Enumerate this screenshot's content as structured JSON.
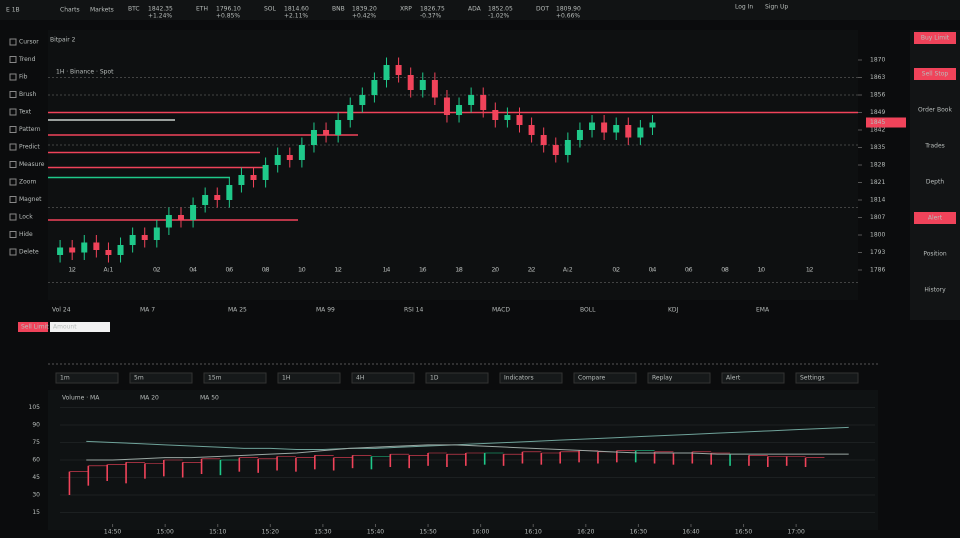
{
  "topbar": {
    "brand": "E 1B",
    "menu": [
      "Charts",
      "Markets"
    ],
    "tickers": [
      {
        "name": "BTC",
        "price": "1842.35",
        "change": "+1.24%",
        "up": false
      },
      {
        "name": "ETH",
        "price": "1796.10",
        "change": "+0.85%",
        "up": false
      },
      {
        "name": "SOL",
        "price": "1814.60",
        "change": "+2.11%",
        "up": false
      },
      {
        "name": "BNB",
        "price": "1839.20",
        "change": "+0.42%",
        "up": true
      },
      {
        "name": "XRP",
        "price": "1826.75",
        "change": "-0.37%",
        "up": false
      },
      {
        "name": "ADA",
        "price": "1852.05",
        "change": "-1.02%",
        "up": false
      },
      {
        "name": "DOT",
        "price": "1809.90",
        "change": "+0.66%",
        "up": true
      }
    ],
    "right": [
      "Log In",
      "Sign Up"
    ]
  },
  "left_labels": [
    "Cursor",
    "Trend",
    "Fib",
    "Brush",
    "Text",
    "Pattern",
    "Predict",
    "Measure",
    "Zoom",
    "Magnet",
    "Lock",
    "Hide",
    "Delete"
  ],
  "right_panel": {
    "buttons": [
      {
        "label": "Buy Limit",
        "red": true
      },
      {
        "label": "Sell Stop",
        "red": true
      },
      {
        "label": "Order Book",
        "red": false
      },
      {
        "label": "Trades",
        "red": false
      },
      {
        "label": "Depth",
        "red": false
      },
      {
        "label": "Alert",
        "red": true
      },
      {
        "label": "Position",
        "red": false
      },
      {
        "label": "History",
        "red": false
      }
    ]
  },
  "order_bar": {
    "button": "Sell Limit",
    "input": "Amount"
  },
  "indicators": [
    "Vol 24",
    "MA 7",
    "MA 25",
    "MA 99",
    "RSI 14",
    "MACD",
    "BOLL",
    "KDJ",
    "EMA"
  ],
  "lower_toolbar": [
    "1m",
    "5m",
    "15m",
    "1H",
    "4H",
    "1D",
    "Indicators",
    "Compare",
    "Replay",
    "Alert",
    "Settings"
  ],
  "chart_data": [
    {
      "type": "candlestick",
      "title": "Bitpair 2",
      "subtitle": "1H · Binance · Spot",
      "up_color": "#1fc98a",
      "down_color": "#f0435a",
      "open": [
        1792,
        1795,
        1793,
        1797,
        1794,
        1792,
        1796,
        1800,
        1798,
        1803,
        1808,
        1806,
        1812,
        1816,
        1814,
        1820,
        1824,
        1822,
        1828,
        1832,
        1830,
        1836,
        1842,
        1840,
        1846,
        1852,
        1856,
        1862,
        1868,
        1864,
        1858,
        1862,
        1855,
        1848,
        1852,
        1856,
        1850,
        1846,
        1848,
        1844,
        1840,
        1836,
        1832,
        1838,
        1842,
        1845,
        1841,
        1844,
        1839,
        1843
      ],
      "high": [
        1798,
        1798,
        1800,
        1800,
        1797,
        1799,
        1803,
        1803,
        1806,
        1811,
        1811,
        1815,
        1819,
        1819,
        1823,
        1827,
        1827,
        1831,
        1835,
        1835,
        1839,
        1845,
        1845,
        1849,
        1855,
        1859,
        1865,
        1871,
        1871,
        1867,
        1865,
        1865,
        1858,
        1855,
        1859,
        1859,
        1853,
        1851,
        1851,
        1847,
        1843,
        1839,
        1841,
        1845,
        1848,
        1848,
        1847,
        1847,
        1846,
        1848
      ],
      "low": [
        1789,
        1790,
        1790,
        1791,
        1789,
        1789,
        1793,
        1795,
        1795,
        1800,
        1803,
        1803,
        1809,
        1811,
        1811,
        1817,
        1819,
        1819,
        1825,
        1827,
        1827,
        1833,
        1837,
        1837,
        1843,
        1849,
        1853,
        1859,
        1861,
        1855,
        1855,
        1852,
        1845,
        1845,
        1849,
        1847,
        1843,
        1843,
        1841,
        1837,
        1833,
        1829,
        1829,
        1835,
        1839,
        1838,
        1838,
        1836,
        1836,
        1840
      ],
      "close": [
        1795,
        1793,
        1797,
        1794,
        1792,
        1796,
        1800,
        1798,
        1803,
        1808,
        1806,
        1812,
        1816,
        1814,
        1820,
        1824,
        1822,
        1828,
        1832,
        1830,
        1836,
        1842,
        1840,
        1846,
        1852,
        1856,
        1862,
        1868,
        1864,
        1858,
        1862,
        1855,
        1848,
        1852,
        1856,
        1850,
        1846,
        1848,
        1844,
        1840,
        1836,
        1832,
        1838,
        1842,
        1845,
        1841,
        1844,
        1839,
        1843,
        1845
      ],
      "levels": [
        {
          "value": 1849,
          "color": "#f0435a",
          "dashed": false
        },
        {
          "value": 1846,
          "color": "#c8d0cc",
          "dashed": false
        },
        {
          "value": 1840,
          "color": "#f0435a",
          "dashed": false
        },
        {
          "value": 1833,
          "color": "#f0435a",
          "dashed": false
        },
        {
          "value": 1827,
          "color": "#f0435a",
          "dashed": false
        },
        {
          "value": 1823,
          "color": "#1fc98a",
          "dashed": false
        },
        {
          "value": 1806,
          "color": "#f0435a",
          "dashed": false
        },
        {
          "value": 1863,
          "color": "#777",
          "dashed": true
        },
        {
          "value": 1856,
          "color": "#777",
          "dashed": true
        },
        {
          "value": 1836,
          "color": "#777",
          "dashed": true
        },
        {
          "value": 1811,
          "color": "#777",
          "dashed": true
        },
        {
          "value": 1781,
          "color": "#777",
          "dashed": true
        }
      ],
      "last_price": 1845,
      "ylim": [
        1778,
        1878
      ],
      "yticks": [
        1870,
        1863,
        1856,
        1849,
        1842,
        1835,
        1828,
        1821,
        1814,
        1807,
        1800,
        1793,
        1786
      ],
      "xlim": [
        -1,
        66
      ],
      "xticks": [
        {
          "value": 1,
          "label": "12"
        },
        {
          "value": 4,
          "label": "A 1"
        },
        {
          "value": 8,
          "label": "02"
        },
        {
          "value": 11,
          "label": "04"
        },
        {
          "value": 14,
          "label": "06"
        },
        {
          "value": 17,
          "label": "08"
        },
        {
          "value": 20,
          "label": "10"
        },
        {
          "value": 23,
          "label": "12"
        },
        {
          "value": 27,
          "label": "14"
        },
        {
          "value": 30,
          "label": "16"
        },
        {
          "value": 33,
          "label": "18"
        },
        {
          "value": 36,
          "label": "20"
        },
        {
          "value": 39,
          "label": "22"
        },
        {
          "value": 42,
          "label": "A 2"
        },
        {
          "value": 46,
          "label": "02"
        },
        {
          "value": 49,
          "label": "04"
        },
        {
          "value": 52,
          "label": "06"
        },
        {
          "value": 55,
          "label": "08"
        },
        {
          "value": 58,
          "label": "10"
        },
        {
          "value": 62,
          "label": "12"
        }
      ]
    },
    {
      "type": "combo",
      "title": "Volume · MA",
      "ylim": [
        0,
        120
      ],
      "yticks": [
        105,
        90,
        75,
        60,
        45,
        30,
        15
      ],
      "xlim": [
        -1,
        30
      ],
      "series": [
        {
          "name": "MA 20",
          "color": "#6fa39a",
          "values": [
            76,
            75,
            74,
            73,
            72,
            71,
            70,
            70,
            69,
            69,
            70,
            70,
            71,
            72,
            73,
            74,
            75,
            76,
            77,
            78,
            79,
            80,
            81,
            82,
            83,
            84,
            85,
            86,
            87,
            88
          ]
        },
        {
          "name": "MA 50",
          "color": "#9aa7a3",
          "values": [
            60,
            60,
            61,
            62,
            62,
            63,
            64,
            65,
            66,
            68,
            70,
            71,
            72,
            73,
            73,
            72,
            71,
            70,
            69,
            68,
            67,
            66,
            66,
            66,
            65,
            65,
            65,
            65,
            65,
            65
          ]
        }
      ],
      "bars": {
        "up_color": "#1fc98a",
        "down_color": "#f0435a",
        "low": [
          30,
          38,
          42,
          40,
          44,
          46,
          45,
          48,
          47,
          50,
          49,
          51,
          50,
          52,
          51,
          53,
          52,
          54,
          53,
          55,
          54,
          55,
          56,
          55,
          57,
          56,
          57,
          58,
          57,
          58,
          58,
          57,
          56,
          57,
          56,
          55,
          55,
          54,
          55,
          54
        ],
        "high": [
          50,
          55,
          56,
          58,
          57,
          60,
          58,
          61,
          60,
          62,
          61,
          63,
          62,
          64,
          62,
          64,
          63,
          65,
          64,
          66,
          65,
          66,
          66,
          65,
          67,
          66,
          67,
          68,
          67,
          68,
          68,
          67,
          66,
          67,
          66,
          65,
          64,
          63,
          63,
          62
        ],
        "up": [
          false,
          false,
          false,
          false,
          false,
          false,
          false,
          false,
          true,
          false,
          false,
          false,
          false,
          false,
          false,
          false,
          true,
          false,
          false,
          false,
          false,
          false,
          true,
          false,
          false,
          false,
          false,
          false,
          false,
          false,
          true,
          false,
          false,
          false,
          false,
          true,
          false,
          false,
          false,
          false
        ]
      },
      "xticks": [
        {
          "value": 1,
          "label": "14:50"
        },
        {
          "value": 3,
          "label": "15:00"
        },
        {
          "value": 5,
          "label": "15:10"
        },
        {
          "value": 7,
          "label": "15:20"
        },
        {
          "value": 9,
          "label": "15:30"
        },
        {
          "value": 11,
          "label": "15:40"
        },
        {
          "value": 13,
          "label": "15:50"
        },
        {
          "value": 15,
          "label": "16:00"
        },
        {
          "value": 17,
          "label": "16:10"
        },
        {
          "value": 19,
          "label": "16:20"
        },
        {
          "value": 21,
          "label": "16:30"
        },
        {
          "value": 23,
          "label": "16:40"
        },
        {
          "value": 25,
          "label": "16:50"
        },
        {
          "value": 27,
          "label": "17:00"
        }
      ]
    }
  ]
}
